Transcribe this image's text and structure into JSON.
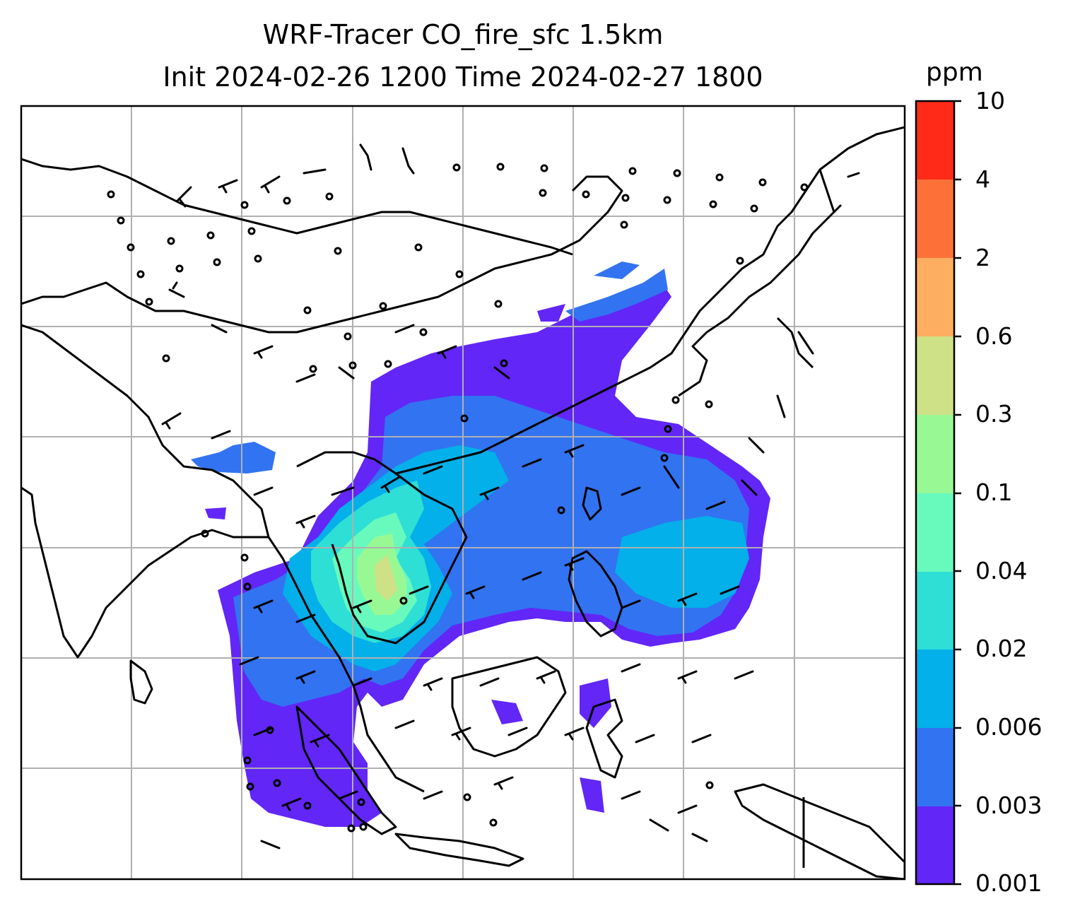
{
  "title_line1": "WRF-Tracer CO_fire_sfc 1.5km",
  "title_line2": "Init 2024-02-26 1200 Time 2024-02-27 1800",
  "colorbar": {
    "unit": "ppm",
    "levels": [
      "0.001",
      "0.003",
      "0.006",
      "0.02",
      "0.04",
      "0.1",
      "0.3",
      "0.6",
      "2",
      "4",
      "10"
    ],
    "colors": [
      "#6226f7",
      "#3273f1",
      "#03b0ea",
      "#2edfd6",
      "#68fabc",
      "#98f994",
      "#cfe186",
      "#fdae61",
      "#fd7139",
      "#ff2a18"
    ]
  },
  "map": {
    "variable": "CO_fire_sfc",
    "grid": "on",
    "wind_barbs": "on",
    "coastlines": "on"
  }
}
